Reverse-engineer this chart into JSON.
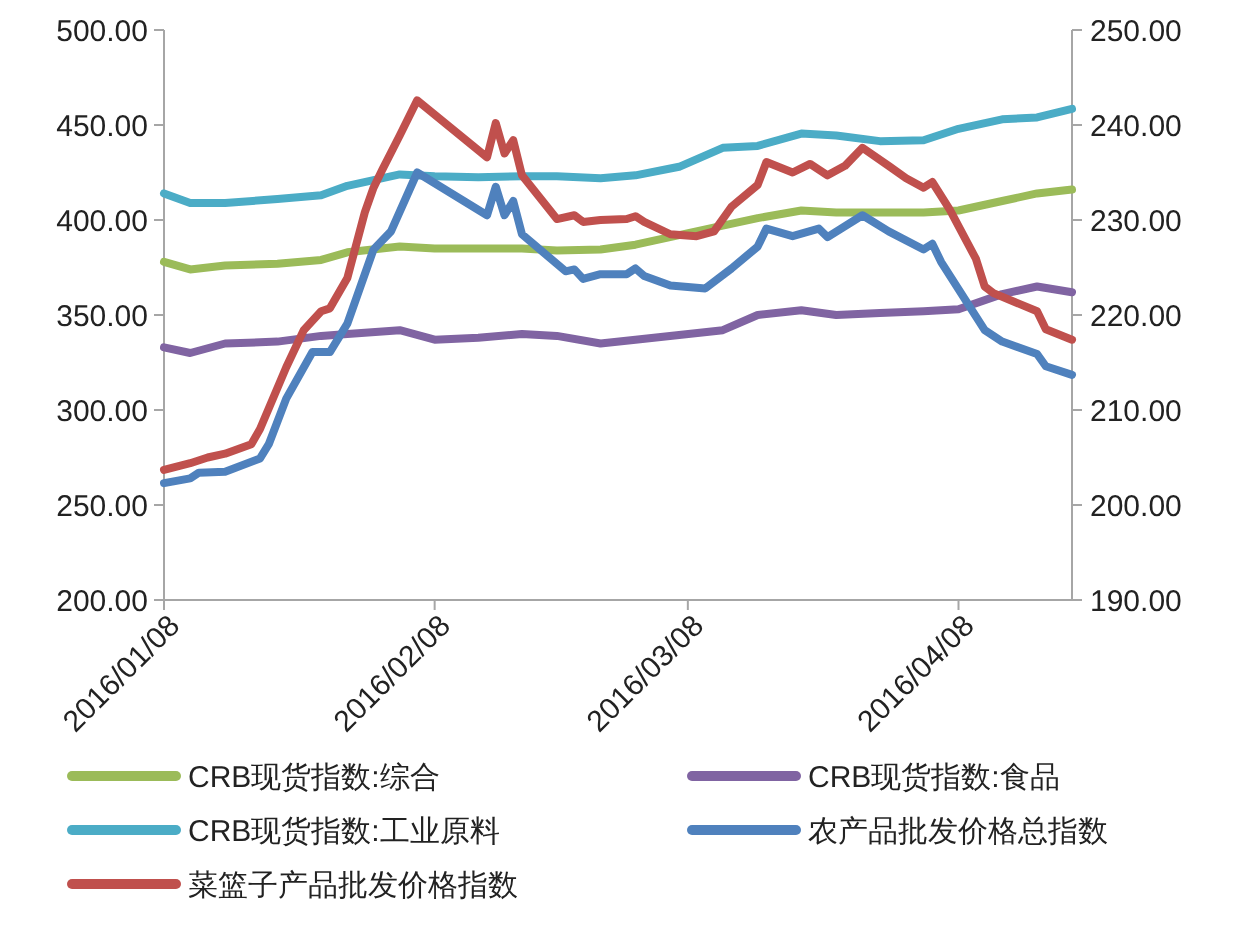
{
  "chart_data": {
    "type": "line",
    "x": [
      "2016-01-08",
      "2016-01-11",
      "2016-01-15",
      "2016-01-21",
      "2016-01-26",
      "2016-01-29",
      "2016-02-04",
      "2016-02-08",
      "2016-02-13",
      "2016-02-18",
      "2016-02-22",
      "2016-02-27",
      "2016-03-02",
      "2016-03-07",
      "2016-03-12",
      "2016-03-16",
      "2016-03-21",
      "2016-03-25",
      "2016-03-30",
      "2016-04-04",
      "2016-04-08",
      "2016-04-13",
      "2016-04-17",
      "2016-04-21"
    ],
    "series": [
      {
        "name": "CRB现货指数:综合",
        "color": "#9bbb59",
        "values": [
          378,
          374,
          376,
          377,
          379,
          383,
          386,
          385,
          385,
          385,
          384,
          384.5,
          387,
          392,
          397,
          401,
          405,
          404,
          404,
          404,
          405,
          410,
          414,
          416
        ]
      },
      {
        "name": "CRB现货指数:食品",
        "color": "#8064a2",
        "values": [
          333,
          330,
          335,
          336,
          339,
          340,
          342,
          337,
          338,
          340,
          339,
          335,
          337,
          339.5,
          342,
          350,
          352.5,
          350,
          351,
          352,
          353,
          361,
          365,
          362
        ]
      },
      {
        "name": "CRB现货指数:工业原料",
        "color": "#4bacc6",
        "values": [
          414,
          409,
          409,
          411,
          413,
          418,
          424,
          423,
          422.5,
          423,
          423,
          422,
          423.5,
          428,
          438,
          439,
          445.5,
          444.5,
          441.5,
          442,
          448,
          453,
          454,
          458.5
        ]
      },
      {
        "name": "农产品批发价格总指数",
        "color": "#4f81bd",
        "axis": "y2",
        "x": [
          "2016-01-08",
          "2016-01-11",
          "2016-01-12",
          "2016-01-15",
          "2016-01-19",
          "2016-01-20",
          "2016-01-22",
          "2016-01-25",
          "2016-01-27",
          "2016-01-29",
          "2016-02-01",
          "2016-02-03",
          "2016-02-06",
          "2016-02-14",
          "2016-02-15",
          "2016-02-16",
          "2016-02-17",
          "2016-02-18",
          "2016-02-23",
          "2016-02-24",
          "2016-02-25",
          "2016-02-27",
          "2016-03-01",
          "2016-03-02",
          "2016-03-03",
          "2016-03-06",
          "2016-03-10",
          "2016-03-13",
          "2016-03-16",
          "2016-03-17",
          "2016-03-20",
          "2016-03-23",
          "2016-03-24",
          "2016-03-28",
          "2016-03-31",
          "2016-04-04",
          "2016-04-05",
          "2016-04-06",
          "2016-04-11",
          "2016-04-13",
          "2016-04-17",
          "2016-04-18",
          "2016-04-21"
        ],
        "values": [
          202.3,
          202.8,
          203.4,
          203.5,
          204.9,
          206.4,
          211.2,
          216.1,
          216.1,
          219.1,
          226.9,
          228.8,
          235,
          230.5,
          233.5,
          230.5,
          232,
          228.5,
          224.6,
          224.8,
          223.8,
          224.3,
          224.3,
          224.9,
          224.1,
          223.1,
          222.8,
          224.9,
          227.2,
          229.1,
          228.3,
          229.1,
          228.2,
          230.5,
          228.8,
          226.9,
          227.5,
          225.6,
          218.4,
          217.2,
          215.9,
          214.6,
          213.7
        ]
      },
      {
        "name": "菜篮子产品批发价格指数",
        "color": "#c0504d",
        "axis": "y2",
        "x": [
          "2016-01-08",
          "2016-01-11",
          "2016-01-13",
          "2016-01-15",
          "2016-01-18",
          "2016-01-19",
          "2016-01-22",
          "2016-01-24",
          "2016-01-26",
          "2016-01-27",
          "2016-01-29",
          "2016-01-31",
          "2016-02-01",
          "2016-02-02",
          "2016-02-04",
          "2016-02-06",
          "2016-02-14",
          "2016-02-15",
          "2016-02-16",
          "2016-02-17",
          "2016-02-18",
          "2016-02-22",
          "2016-02-24",
          "2016-02-25",
          "2016-02-27",
          "2016-03-01",
          "2016-03-02",
          "2016-03-03",
          "2016-03-06",
          "2016-03-09",
          "2016-03-11",
          "2016-03-13",
          "2016-03-16",
          "2016-03-17",
          "2016-03-20",
          "2016-03-22",
          "2016-03-24",
          "2016-03-26",
          "2016-03-28",
          "2016-03-31",
          "2016-04-02",
          "2016-04-04",
          "2016-04-05",
          "2016-04-07",
          "2016-04-10",
          "2016-04-11",
          "2016-04-12",
          "2016-04-17",
          "2016-04-18",
          "2016-04-21"
        ],
        "values": [
          203.7,
          204.4,
          205,
          205.4,
          206.4,
          208,
          214.5,
          218.4,
          220.4,
          220.7,
          223.9,
          230.8,
          233.4,
          235.3,
          238.9,
          242.6,
          236.6,
          240.2,
          237,
          238.4,
          234.7,
          230.1,
          230.5,
          229.8,
          230,
          230.1,
          230.4,
          229.8,
          228.5,
          228.3,
          228.8,
          231.4,
          233.7,
          236.1,
          235,
          235.9,
          234.7,
          235.7,
          237.6,
          235.7,
          234.4,
          233.4,
          234,
          231.1,
          225.9,
          223,
          222.3,
          220.4,
          218.5,
          217.4
        ]
      }
    ],
    "xlim": [
      "2016-01-08",
      "2016-04-21"
    ],
    "xticks": [
      {
        "value": "2016-01-08",
        "label": "2016/01/08"
      },
      {
        "value": "2016-02-08",
        "label": "2016/02/08"
      },
      {
        "value": "2016-03-08",
        "label": "2016/03/08"
      },
      {
        "value": "2016-04-08",
        "label": "2016/04/08"
      }
    ],
    "ylim": [
      200,
      500
    ],
    "yticks": [
      {
        "value": 200,
        "label": "200.00"
      },
      {
        "value": 250,
        "label": "250.00"
      },
      {
        "value": 300,
        "label": "300.00"
      },
      {
        "value": 350,
        "label": "350.00"
      },
      {
        "value": 400,
        "label": "400.00"
      },
      {
        "value": 450,
        "label": "450.00"
      },
      {
        "value": 500,
        "label": "500.00"
      }
    ],
    "y2lim": [
      190,
      250
    ],
    "y2ticks": [
      {
        "value": 190,
        "label": "190.00"
      },
      {
        "value": 200,
        "label": "200.00"
      },
      {
        "value": 210,
        "label": "210.00"
      },
      {
        "value": 220,
        "label": "220.00"
      },
      {
        "value": 230,
        "label": "230.00"
      },
      {
        "value": 240,
        "label": "240.00"
      },
      {
        "value": 250,
        "label": "250.00"
      }
    ],
    "grid": false,
    "legend": "bottom",
    "marker": "none",
    "line_style": "solid"
  }
}
